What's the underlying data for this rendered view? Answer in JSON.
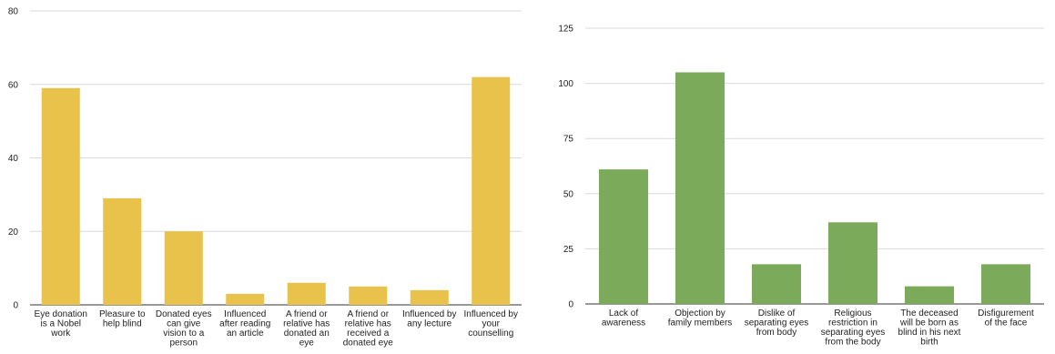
{
  "chart_data": [
    {
      "type": "bar",
      "categories": [
        "Eye donation is a Nobel work",
        "Pleasure to help blind",
        "Donated eyes can give vision to a person",
        "Influenced after reading an article",
        "A friend or relative has donated an eye",
        "A friend or relative has received a donated eye",
        "Influenced by any lecture",
        "Influenced by your counselling"
      ],
      "category_lines": [
        [
          "Eye donation",
          "is a Nobel",
          "work"
        ],
        [
          "Pleasure to",
          "help blind"
        ],
        [
          "Donated eyes",
          "can give",
          "vision to a",
          "person"
        ],
        [
          "Influenced",
          "after reading",
          "an article"
        ],
        [
          "A friend or",
          "relative has",
          "donated an",
          "eye"
        ],
        [
          "A friend or",
          "relative has",
          "received a",
          "donated eye"
        ],
        [
          "Influenced by",
          "any lecture"
        ],
        [
          "Influenced by",
          "your",
          "counselling"
        ]
      ],
      "values": [
        59,
        29,
        20,
        3,
        6,
        5,
        4,
        62
      ],
      "title": "",
      "xlabel": "",
      "ylabel": "",
      "ylim": [
        0,
        80
      ],
      "yticks": [
        0,
        20,
        40,
        60,
        80
      ],
      "grid": true,
      "color": "#E8C24A"
    },
    {
      "type": "bar",
      "categories": [
        "Lack of awareness",
        "Objection by family members",
        "Dislike of separating eyes from body",
        "Religious restriction in separating eyes from the body",
        "The deceased will be born as blind in his next birth",
        "Disfigurement of the face"
      ],
      "category_lines": [
        [
          "Lack of",
          "awareness"
        ],
        [
          "Objection by",
          "family members"
        ],
        [
          "Dislike of",
          "separating eyes",
          "from body"
        ],
        [
          "Religious",
          "restriction in",
          "separating eyes",
          "from the body"
        ],
        [
          "The deceased",
          "will be born as",
          "blind in his next",
          "birth"
        ],
        [
          "Disfigurement",
          "of the face"
        ]
      ],
      "values": [
        61,
        105,
        18,
        37,
        8,
        18
      ],
      "title": "",
      "xlabel": "",
      "ylabel": "",
      "ylim": [
        0,
        125
      ],
      "yticks": [
        0,
        25,
        50,
        75,
        100,
        125
      ],
      "grid": true,
      "color": "#7AAA5A"
    }
  ]
}
